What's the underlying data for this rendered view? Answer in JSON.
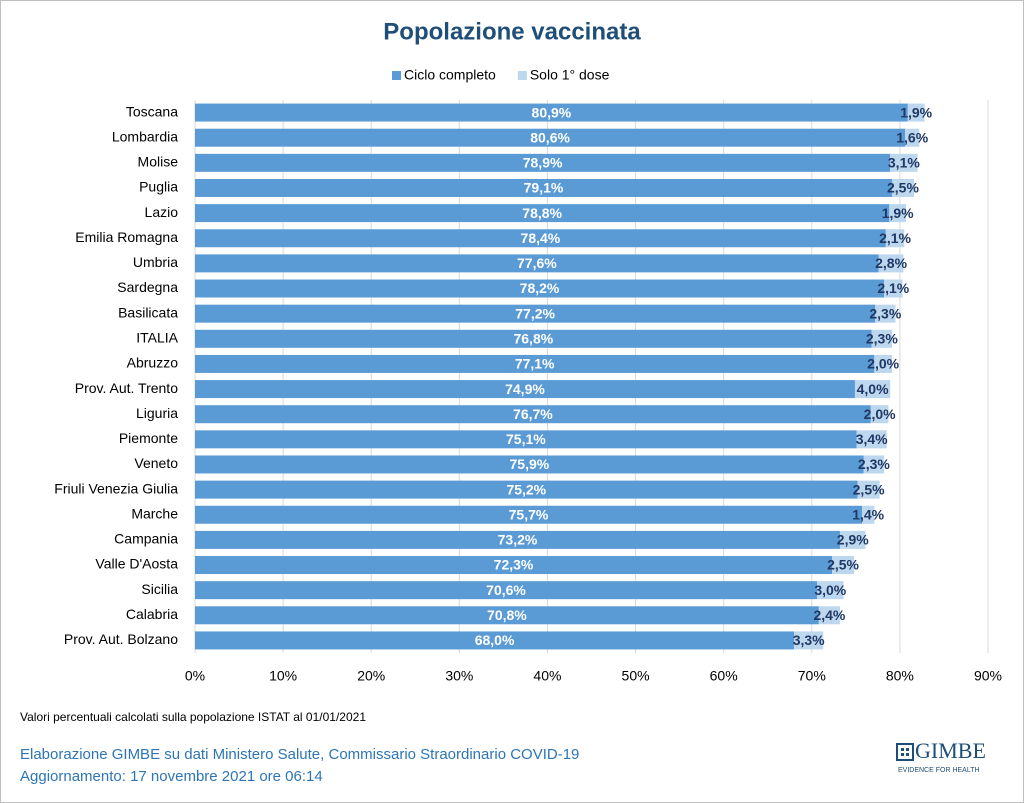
{
  "chart_data": {
    "type": "stacked-barh",
    "title": "Popolazione vaccinata",
    "categories": [
      "Toscana",
      "Lombardia",
      "Molise",
      "Puglia",
      "Lazio",
      "Emilia Romagna",
      "Umbria",
      "Sardegna",
      "Basilicata",
      "ITALIA",
      "Abruzzo",
      "Prov. Aut. Trento",
      "Liguria",
      "Piemonte",
      "Veneto",
      "Friuli Venezia Giulia",
      "Marche",
      "Campania",
      "Valle D'Aosta",
      "Sicilia",
      "Calabria",
      "Prov. Aut. Bolzano"
    ],
    "series": [
      {
        "name": "Ciclo completo",
        "color": "#5b9bd5",
        "values": [
          80.9,
          80.6,
          78.9,
          79.1,
          78.8,
          78.4,
          77.6,
          78.2,
          77.2,
          76.8,
          77.1,
          74.9,
          76.7,
          75.1,
          75.9,
          75.2,
          75.7,
          73.2,
          72.3,
          70.6,
          70.8,
          68.0
        ],
        "value_labels": [
          "80,9%",
          "80,6%",
          "78,9%",
          "79,1%",
          "78,8%",
          "78,4%",
          "77,6%",
          "78,2%",
          "77,2%",
          "76,8%",
          "77,1%",
          "74,9%",
          "76,7%",
          "75,1%",
          "75,9%",
          "75,2%",
          "75,7%",
          "73,2%",
          "72,3%",
          "70,6%",
          "70,8%",
          "68,0%"
        ]
      },
      {
        "name": "Solo 1° dose",
        "color": "#bdd7ee",
        "values": [
          1.9,
          1.6,
          3.1,
          2.5,
          1.9,
          2.1,
          2.8,
          2.1,
          2.3,
          2.3,
          2.0,
          4.0,
          2.0,
          3.4,
          2.3,
          2.5,
          1.4,
          2.9,
          2.5,
          3.0,
          2.4,
          3.3
        ],
        "value_labels": [
          "1,9%",
          "1,6%",
          "3,1%",
          "2,5%",
          "1,9%",
          "2,1%",
          "2,8%",
          "2,1%",
          "2,3%",
          "2,3%",
          "2,0%",
          "4,0%",
          "2,0%",
          "3,4%",
          "2,3%",
          "2,5%",
          "1,4%",
          "2,9%",
          "2,5%",
          "3,0%",
          "2,4%",
          "3,3%"
        ]
      }
    ],
    "xlim": [
      0,
      90
    ],
    "xticks": [
      {
        "value": 0,
        "label": "0%"
      },
      {
        "value": 10,
        "label": "10%"
      },
      {
        "value": 20,
        "label": "20%"
      },
      {
        "value": 30,
        "label": "30%"
      },
      {
        "value": 40,
        "label": "40%"
      },
      {
        "value": 50,
        "label": "50%"
      },
      {
        "value": 60,
        "label": "60%"
      },
      {
        "value": 70,
        "label": "70%"
      },
      {
        "value": 80,
        "label": "80%"
      },
      {
        "value": 90,
        "label": "90%"
      }
    ],
    "grid": true,
    "legend": "top",
    "note": "Valori percentuali calcolati sulla popolazione ISTAT al 01/01/2021",
    "source": "Elaborazione GIMBE su dati Ministero Salute, Commissario Straordinario COVID-19",
    "updated": "Aggiornamento: 17 novembre 2021 ore 06:14",
    "logo": {
      "name": "GIMBE",
      "tagline": "EVIDENCE FOR HEALTH"
    }
  }
}
